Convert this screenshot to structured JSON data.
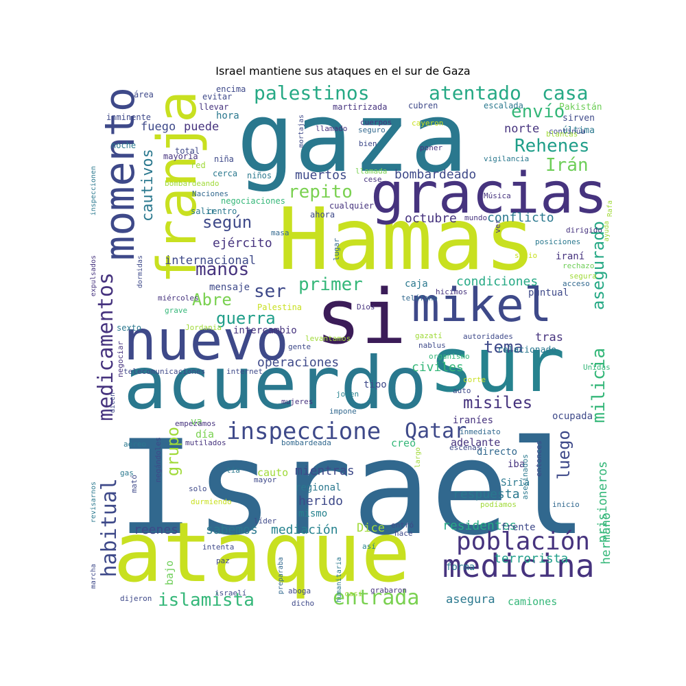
{
  "title": "Israel mantiene sus ataques en el sur de Gaza",
  "palette": [
    "#440154",
    "#482878",
    "#3e4989",
    "#31688e",
    "#26828e",
    "#1f9e89",
    "#35b779",
    "#6ece58",
    "#b5de2b",
    "#d2e21b"
  ],
  "words": [
    {
      "text": "Israel",
      "color": "#31688e"
    },
    {
      "text": "gaza",
      "color": "#2a788e"
    },
    {
      "text": "Hamas",
      "color": "#c8e020"
    },
    {
      "text": "ataque",
      "color": "#c8e020"
    },
    {
      "text": "acuerdo",
      "color": "#2a788e"
    },
    {
      "text": "sur",
      "color": "#26828e"
    },
    {
      "text": "si",
      "color": "#3b1c58"
    },
    {
      "text": "nuevo",
      "color": "#3e4989"
    },
    {
      "text": "gracias",
      "color": "#46337e"
    },
    {
      "text": "mikel",
      "color": "#3e4989"
    },
    {
      "text": "momento",
      "color": "#3e4989"
    },
    {
      "text": "franja",
      "color": "#c8e020"
    },
    {
      "text": "medicina",
      "color": "#46337e"
    },
    {
      "text": "población",
      "color": "#46337e"
    },
    {
      "text": "inspeccione",
      "color": "#3e4989"
    },
    {
      "text": "Qatar",
      "color": "#3e4989"
    },
    {
      "text": "palestinos",
      "color": "#26a985"
    },
    {
      "text": "atentado",
      "color": "#26a985"
    },
    {
      "text": "casa",
      "color": "#26a985"
    },
    {
      "text": "envío",
      "color": "#35b779"
    },
    {
      "text": "Rehenes",
      "color": "#1f9e89"
    },
    {
      "text": "Irán",
      "color": "#6ece58"
    },
    {
      "text": "repito",
      "color": "#7ad151"
    },
    {
      "text": "medicamentos",
      "color": "#46337e"
    },
    {
      "text": "milicia",
      "color": "#35b779"
    },
    {
      "text": "asegurado",
      "color": "#26a985"
    },
    {
      "text": "habitual",
      "color": "#3e4989"
    },
    {
      "text": "cautivos",
      "color": "#2a788e"
    },
    {
      "text": "según",
      "color": "#3e4989"
    },
    {
      "text": "manos",
      "color": "#46337e"
    },
    {
      "text": "primer",
      "color": "#35b779"
    },
    {
      "text": "ser",
      "color": "#3e4989"
    },
    {
      "text": "guerra",
      "color": "#1f9e89"
    },
    {
      "text": "tema",
      "color": "#3e4989"
    },
    {
      "text": "Abre",
      "color": "#7ad151"
    },
    {
      "text": "misiles",
      "color": "#46337e"
    },
    {
      "text": "luego",
      "color": "#3e4989"
    },
    {
      "text": "grupo",
      "color": "#a0da39"
    },
    {
      "text": "entrada",
      "color": "#7ad151"
    },
    {
      "text": "islamista",
      "color": "#35b779"
    },
    {
      "text": "terrorista",
      "color": "#1f9e89"
    },
    {
      "text": "prisioneros",
      "color": "#35b779"
    },
    {
      "text": "hermano",
      "color": "#35b779"
    },
    {
      "text": "operaciones",
      "color": "#3e4989"
    },
    {
      "text": "residentes",
      "color": "#26a985"
    },
    {
      "text": "mediación",
      "color": "#26828e"
    },
    {
      "text": "sabemos",
      "color": "#2a788e"
    },
    {
      "text": "reenes",
      "color": "#3e4989"
    },
    {
      "text": "respuesta",
      "color": "#2a788e"
    },
    {
      "text": "mientras",
      "color": "#3e4989"
    },
    {
      "text": "herido",
      "color": "#3e4989"
    },
    {
      "text": "civiles",
      "color": "#35b779"
    },
    {
      "text": "condiciones",
      "color": "#26a985"
    },
    {
      "text": "bombardeado",
      "color": "#3e4989"
    },
    {
      "text": "octubre",
      "color": "#46337e"
    },
    {
      "text": "conflicto",
      "color": "#2a788e"
    },
    {
      "text": "muertos",
      "color": "#3e4989"
    },
    {
      "text": "ejército",
      "color": "#46337e"
    },
    {
      "text": "internacional",
      "color": "#3e4989"
    },
    {
      "text": "fuego",
      "color": "#3e4989"
    },
    {
      "text": "puede",
      "color": "#46337e"
    },
    {
      "text": "norte",
      "color": "#46337e"
    },
    {
      "text": "tras",
      "color": "#46337e"
    },
    {
      "text": "Dice",
      "color": "#a0da39"
    },
    {
      "text": "asegura",
      "color": "#2a788e"
    },
    {
      "text": "camiones",
      "color": "#35b779"
    },
    {
      "text": "día",
      "color": "#7ad151"
    },
    {
      "text": "creo",
      "color": "#35b779"
    },
    {
      "text": "cauto",
      "color": "#a0da39"
    },
    {
      "text": "adelante",
      "color": "#46337e"
    },
    {
      "text": "directo",
      "color": "#31688e"
    },
    {
      "text": "iba",
      "color": "#46337e"
    },
    {
      "text": "Siria",
      "color": "#2a788e"
    },
    {
      "text": "regional",
      "color": "#2a788e"
    },
    {
      "text": "mismo",
      "color": "#26828e"
    },
    {
      "text": "va",
      "color": "#6ece58"
    },
    {
      "text": "bajo",
      "color": "#6ece58"
    },
    {
      "text": "forma",
      "color": "#2a788e"
    },
    {
      "text": "frente",
      "color": "#3e4989"
    },
    {
      "text": "iraníes",
      "color": "#46337e"
    },
    {
      "text": "ocupada",
      "color": "#3e4989"
    },
    {
      "text": "tipo",
      "color": "#3e4989"
    },
    {
      "text": "intercambio",
      "color": "#46337e"
    },
    {
      "text": "mensaje",
      "color": "#3e4989"
    },
    {
      "text": "caja",
      "color": "#2a788e"
    },
    {
      "text": "puntual",
      "color": "#3e4989"
    },
    {
      "text": "iraní",
      "color": "#46337e"
    },
    {
      "text": "relacionado",
      "color": "#2a788e"
    },
    {
      "text": "hora",
      "color": "#2a788e"
    },
    {
      "text": "Pakistán",
      "color": "#6ece58"
    },
    {
      "text": "sirven",
      "color": "#3e4989"
    },
    {
      "text": "última",
      "color": "#2a788e"
    },
    {
      "text": "escalada",
      "color": "#2a788e"
    },
    {
      "text": "cubren",
      "color": "#3e4989"
    },
    {
      "text": "martirizada",
      "color": "#46337e"
    },
    {
      "text": "llevar",
      "color": "#46337e"
    },
    {
      "text": "evitar",
      "color": "#3e4989"
    },
    {
      "text": "encima",
      "color": "#3e4989"
    },
    {
      "text": "área",
      "color": "#3e4989"
    },
    {
      "text": "inminente",
      "color": "#3e4989"
    },
    {
      "text": "noche",
      "color": "#2a788e"
    },
    {
      "text": "total",
      "color": "#3e4989"
    },
    {
      "text": "mayoría",
      "color": "#46337e"
    },
    {
      "text": "niña",
      "color": "#3e4989"
    },
    {
      "text": "red",
      "color": "#a0da39"
    },
    {
      "text": "cerca",
      "color": "#2a788e"
    },
    {
      "text": "niños",
      "color": "#2a788e"
    },
    {
      "text": "bombardeando",
      "color": "#a0da39"
    },
    {
      "text": "Naciones",
      "color": "#31688e"
    },
    {
      "text": "negociaciones",
      "color": "#35b779"
    },
    {
      "text": "salir",
      "color": "#2a788e"
    },
    {
      "text": "centro",
      "color": "#2a788e"
    },
    {
      "text": "ahora",
      "color": "#3e4989"
    },
    {
      "text": "cualquier",
      "color": "#46337e"
    },
    {
      "text": "mundo",
      "color": "#46337e"
    },
    {
      "text": "Música",
      "color": "#46337e"
    },
    {
      "text": "cese",
      "color": "#46337e"
    },
    {
      "text": "llamada",
      "color": "#7ad151"
    },
    {
      "text": "vigilancia",
      "color": "#2a788e"
    },
    {
      "text": "poner",
      "color": "#46337e"
    },
    {
      "text": "bien",
      "color": "#3e4989"
    },
    {
      "text": "cuerpos",
      "color": "#46337e"
    },
    {
      "text": "seguro",
      "color": "#31688e"
    },
    {
      "text": "llamado",
      "color": "#46337e"
    },
    {
      "text": "mortajas",
      "color": "#3e4989"
    },
    {
      "text": "cayeron",
      "color": "#c8e020"
    },
    {
      "text": "continúa",
      "color": "#3e4989"
    },
    {
      "text": "blancas",
      "color": "#a0da39"
    },
    {
      "text": "ver",
      "color": "#46337e"
    },
    {
      "text": "dirigido",
      "color": "#46337e"
    },
    {
      "text": "posiciones",
      "color": "#2a788e"
    },
    {
      "text": "ayuda",
      "color": "#a0da39"
    },
    {
      "text": "Rafa",
      "color": "#a0da39"
    },
    {
      "text": "sitio",
      "color": "#c8e020"
    },
    {
      "text": "rechazo",
      "color": "#6ece58"
    },
    {
      "text": "segura",
      "color": "#a0da39"
    },
    {
      "text": "acceso",
      "color": "#31688e"
    },
    {
      "text": "hicimos",
      "color": "#46337e"
    },
    {
      "text": "teléfono",
      "color": "#31688e"
    },
    {
      "text": "lugar",
      "color": "#31688e"
    },
    {
      "text": "masa",
      "color": "#31688e"
    },
    {
      "text": "Dios",
      "color": "#46337e"
    },
    {
      "text": "Palestina",
      "color": "#c8e020"
    },
    {
      "text": "miércoles",
      "color": "#46337e"
    },
    {
      "text": "grave",
      "color": "#35b779"
    },
    {
      "text": "Jordania",
      "color": "#a0da39"
    },
    {
      "text": "sexto",
      "color": "#2a788e"
    },
    {
      "text": "levantamos",
      "color": "#a0da39"
    },
    {
      "text": "gente",
      "color": "#3e4989"
    },
    {
      "text": "gazatí",
      "color": "#a0da39"
    },
    {
      "text": "autoridades",
      "color": "#3e4989"
    },
    {
      "text": "nablus",
      "color": "#3e4989"
    },
    {
      "text": "organismo",
      "color": "#35b779"
    },
    {
      "text": "telecomunicaciones",
      "color": "#3e4989"
    },
    {
      "text": "internet",
      "color": "#3e4989"
    },
    {
      "text": "negociar",
      "color": "#46337e"
    },
    {
      "text": "Unidas",
      "color": "#35b779"
    },
    {
      "text": "corte",
      "color": "#c8e020"
    },
    {
      "text": "auto",
      "color": "#3e4989"
    },
    {
      "text": "joven",
      "color": "#26828e"
    },
    {
      "text": "mujeres",
      "color": "#46337e"
    },
    {
      "text": "impone",
      "color": "#31688e"
    },
    {
      "text": "empezamos",
      "color": "#46337e"
    },
    {
      "text": "mutilados",
      "color": "#46337e"
    },
    {
      "text": "bombardeada",
      "color": "#31688e"
    },
    {
      "text": "escenas",
      "color": "#3e4989"
    },
    {
      "text": "inmediato",
      "color": "#31688e"
    },
    {
      "text": "entonces",
      "color": "#3e4989"
    },
    {
      "text": "asesinados",
      "color": "#2a788e"
    },
    {
      "text": "largo",
      "color": "#a0da39"
    },
    {
      "text": "podíamos",
      "color": "#a0da39"
    },
    {
      "text": "inicio",
      "color": "#31688e"
    },
    {
      "text": "aéreo",
      "color": "#2a788e"
    },
    {
      "text": "gas",
      "color": "#2a788e"
    },
    {
      "text": "negándoles",
      "color": "#3e4989"
    },
    {
      "text": "tía",
      "color": "#2a788e"
    },
    {
      "text": "mayor",
      "color": "#3e4989"
    },
    {
      "text": "solo",
      "color": "#3e4989"
    },
    {
      "text": "durmiendo",
      "color": "#c8e020"
    },
    {
      "text": "mató",
      "color": "#3e4989"
    },
    {
      "text": "líder",
      "color": "#3e4989"
    },
    {
      "text": "entró",
      "color": "#3e4989"
    },
    {
      "text": "hace",
      "color": "#3e4989"
    },
    {
      "text": "intenta",
      "color": "#3e4989"
    },
    {
      "text": "paz",
      "color": "#3e4989"
    },
    {
      "text": "así",
      "color": "#26828e"
    },
    {
      "text": "preparaba",
      "color": "#31688e"
    },
    {
      "text": "humanitaria",
      "color": "#2a788e"
    },
    {
      "text": "israelí",
      "color": "#3e4989"
    },
    {
      "text": "aboga",
      "color": "#3e4989"
    },
    {
      "text": "casi",
      "color": "#a0da39"
    },
    {
      "text": "grabaron",
      "color": "#46337e"
    },
    {
      "text": "dijeron",
      "color": "#3e4989"
    },
    {
      "text": "dicho",
      "color": "#3e4989"
    },
    {
      "text": "marcha",
      "color": "#3e4989"
    },
    {
      "text": "revisarnos",
      "color": "#2a788e"
    },
    {
      "text": "expulsados",
      "color": "#46337e"
    },
    {
      "text": "inspeccionen",
      "color": "#2a788e"
    },
    {
      "text": "dormidas",
      "color": "#3e4989"
    },
    {
      "text": "dicen",
      "color": "#3e4989"
    }
  ]
}
